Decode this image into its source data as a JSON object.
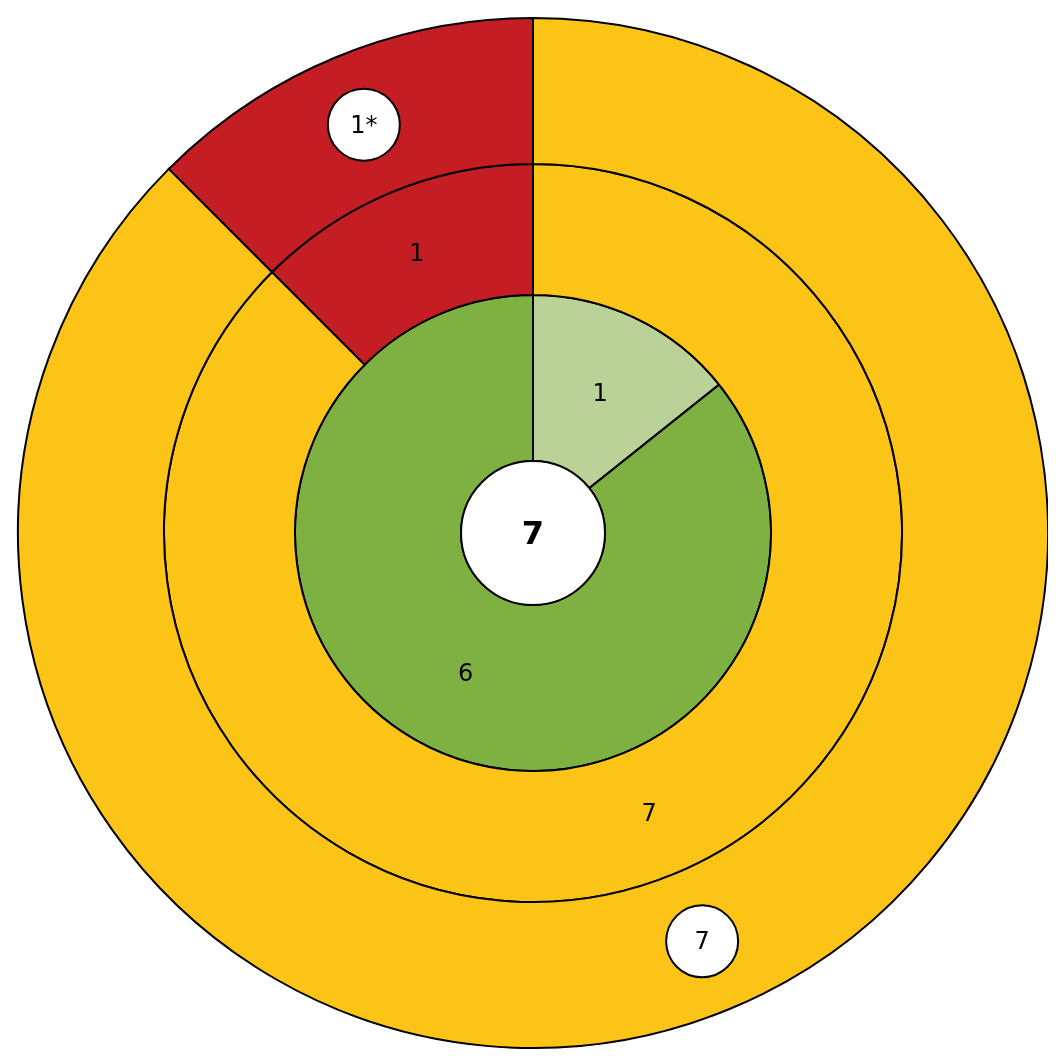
{
  "chart_data": {
    "type": "donut",
    "annotations": [
      "7"
    ],
    "series": [
      {
        "values": [
          1,
          6
        ],
        "colors": [
          "#bad297",
          "#7fb142"
        ],
        "value_labels": [
          "1",
          "6"
        ]
      },
      {
        "values": [
          7,
          1
        ],
        "colors": [
          "#fdc418",
          "#c41e24"
        ],
        "value_labels": [
          "7",
          "1"
        ]
      },
      {
        "values": [
          7,
          1
        ],
        "colors": [
          "#fdc418",
          "#c41e24"
        ],
        "value_labels": [
          "7",
          "1*"
        ]
      }
    ]
  }
}
